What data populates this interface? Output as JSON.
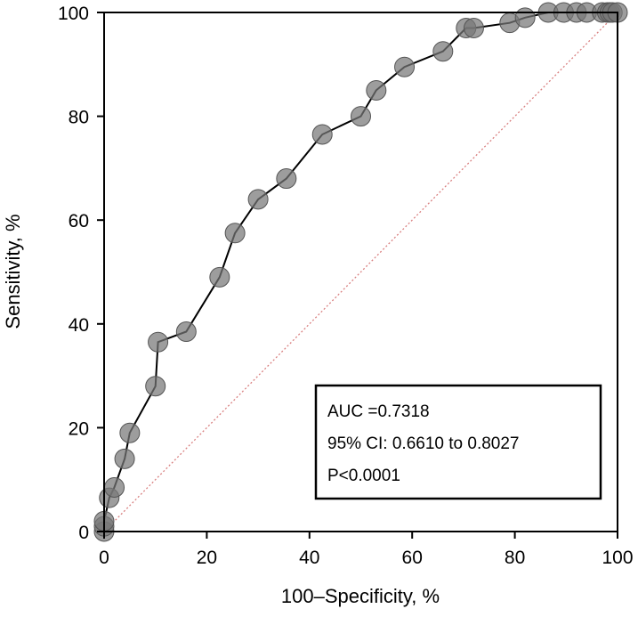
{
  "chart_data": {
    "type": "line",
    "title": "",
    "xlabel": "100–Specificity, %",
    "ylabel": "Sensitivity, %",
    "xlim": [
      0,
      100
    ],
    "ylim": [
      0,
      100
    ],
    "xticks": [
      0,
      20,
      40,
      60,
      80,
      100
    ],
    "yticks": [
      0,
      20,
      40,
      60,
      80,
      100
    ],
    "grid": false,
    "series": [
      {
        "name": "ROC curve",
        "markers": "circle",
        "x": [
          0,
          0,
          0,
          1,
          2,
          4,
          5,
          10,
          10.5,
          16,
          22.5,
          25.5,
          30,
          35.5,
          42.5,
          50,
          53,
          58.5,
          66,
          70.5,
          72,
          79,
          82,
          86.5,
          89.5,
          92,
          94,
          97,
          98,
          98.5,
          99,
          100
        ],
        "y": [
          0,
          1,
          2,
          6.5,
          8.5,
          14,
          19,
          28,
          36.5,
          38.5,
          49,
          57.5,
          64,
          68,
          76.5,
          80,
          85,
          89.5,
          92.5,
          97,
          97,
          98,
          99,
          100,
          100,
          100,
          100,
          100,
          100,
          100,
          100,
          100
        ]
      },
      {
        "name": "Reference line",
        "style": "dotted",
        "color": "#d98080",
        "x": [
          0,
          100
        ],
        "y": [
          0,
          100
        ]
      }
    ],
    "annotation": {
      "lines": [
        "AUC =0.7318",
        "95% CI: 0.6610 to 0.8027",
        "P<0.0001"
      ],
      "placement": "bottom-right"
    }
  }
}
